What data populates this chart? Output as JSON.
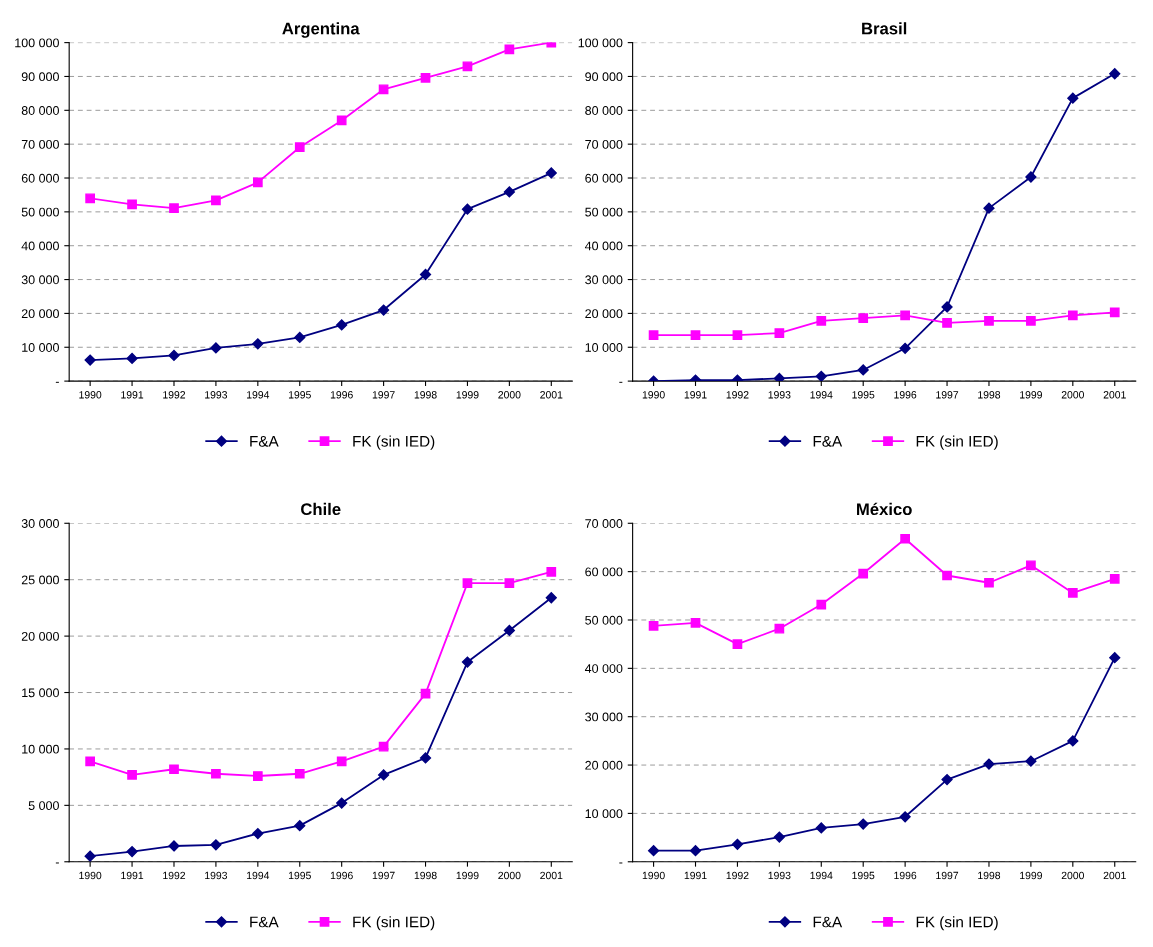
{
  "chart_data": [
    {
      "type": "line",
      "title": "Argentina",
      "categories": [
        "1990",
        "1991",
        "1992",
        "1993",
        "1994",
        "1995",
        "1996",
        "1997",
        "1998",
        "1999",
        "2000",
        "2001"
      ],
      "ylim": [
        0,
        100000
      ],
      "yticks": [
        {
          "value": 0,
          "label": "-"
        },
        {
          "value": 10000,
          "label": "10 000"
        },
        {
          "value": 20000,
          "label": "20 000"
        },
        {
          "value": 30000,
          "label": "30 000"
        },
        {
          "value": 40000,
          "label": "40 000"
        },
        {
          "value": 50000,
          "label": "50 000"
        },
        {
          "value": 60000,
          "label": "60 000"
        },
        {
          "value": 70000,
          "label": "70 000"
        },
        {
          "value": 80000,
          "label": "80 000"
        },
        {
          "value": 90000,
          "label": "90 000"
        },
        {
          "value": 100000,
          "label": "100 000"
        }
      ],
      "grid": "y",
      "legend": "bottom",
      "series": [
        {
          "name": "F&A",
          "color": "#000080",
          "marker": "diamond",
          "values": [
            6200,
            6700,
            7600,
            9800,
            11000,
            12900,
            16600,
            21000,
            31500,
            50800,
            55900,
            61500
          ]
        },
        {
          "name": "FK (sin IED)",
          "color": "#ff00ff",
          "marker": "square",
          "values": [
            54000,
            52200,
            51100,
            53400,
            58700,
            69100,
            77000,
            86200,
            89600,
            93000,
            98000,
            100000
          ]
        }
      ]
    },
    {
      "type": "line",
      "title": "Brasil",
      "categories": [
        "1990",
        "1991",
        "1992",
        "1993",
        "1994",
        "1995",
        "1996",
        "1997",
        "1998",
        "1999",
        "2000",
        "2001"
      ],
      "ylim": [
        0,
        100000
      ],
      "yticks": [
        {
          "value": 0,
          "label": "-"
        },
        {
          "value": 10000,
          "label": "10 000"
        },
        {
          "value": 20000,
          "label": "20 000"
        },
        {
          "value": 30000,
          "label": "30 000"
        },
        {
          "value": 40000,
          "label": "40 000"
        },
        {
          "value": 50000,
          "label": "50 000"
        },
        {
          "value": 60000,
          "label": "60 000"
        },
        {
          "value": 70000,
          "label": "70 000"
        },
        {
          "value": 80000,
          "label": "80 000"
        },
        {
          "value": 90000,
          "label": "90 000"
        },
        {
          "value": 100000,
          "label": "100 000"
        }
      ],
      "grid": "y",
      "legend": "bottom",
      "series": [
        {
          "name": "F&A",
          "color": "#000080",
          "marker": "diamond",
          "values": [
            0,
            300,
            300,
            800,
            1400,
            3300,
            9700,
            21900,
            51100,
            60300,
            83600,
            90800
          ]
        },
        {
          "name": "FK (sin IED)",
          "color": "#ff00ff",
          "marker": "square",
          "values": [
            13600,
            13600,
            13600,
            14200,
            17800,
            18600,
            19400,
            17200,
            17800,
            17800,
            19400,
            20300
          ]
        }
      ]
    },
    {
      "type": "line",
      "title": "Chile",
      "categories": [
        "1990",
        "1991",
        "1992",
        "1993",
        "1994",
        "1995",
        "1996",
        "1997",
        "1998",
        "1999",
        "2000",
        "2001"
      ],
      "ylim": [
        0,
        30000
      ],
      "yticks": [
        {
          "value": 0,
          "label": "-"
        },
        {
          "value": 5000,
          "label": "5 000"
        },
        {
          "value": 10000,
          "label": "10 000"
        },
        {
          "value": 15000,
          "label": "15 000"
        },
        {
          "value": 20000,
          "label": "20 000"
        },
        {
          "value": 25000,
          "label": "25 000"
        },
        {
          "value": 30000,
          "label": "30 000"
        }
      ],
      "grid": "y",
      "legend": "bottom",
      "series": [
        {
          "name": "F&A",
          "color": "#000080",
          "marker": "diamond",
          "values": [
            500,
            900,
            1400,
            1500,
            2500,
            3200,
            5200,
            7700,
            9200,
            17700,
            20500,
            23400
          ]
        },
        {
          "name": "FK (sin IED)",
          "color": "#ff00ff",
          "marker": "square",
          "values": [
            8900,
            7700,
            8200,
            7800,
            7600,
            7800,
            8900,
            10200,
            14900,
            24700,
            24700,
            25700
          ]
        }
      ]
    },
    {
      "type": "line",
      "title": "México",
      "categories": [
        "1990",
        "1991",
        "1992",
        "1993",
        "1994",
        "1995",
        "1996",
        "1997",
        "1998",
        "1999",
        "2000",
        "2001"
      ],
      "ylim": [
        0,
        70000
      ],
      "yticks": [
        {
          "value": 0,
          "label": "-"
        },
        {
          "value": 10000,
          "label": "10 000"
        },
        {
          "value": 20000,
          "label": "20 000"
        },
        {
          "value": 30000,
          "label": "30 000"
        },
        {
          "value": 40000,
          "label": "40 000"
        },
        {
          "value": 50000,
          "label": "50 000"
        },
        {
          "value": 60000,
          "label": "60 000"
        },
        {
          "value": 70000,
          "label": "70 000"
        }
      ],
      "grid": "y",
      "legend": "bottom",
      "series": [
        {
          "name": "F&A",
          "color": "#000080",
          "marker": "diamond",
          "values": [
            2300,
            2300,
            3600,
            5100,
            7000,
            7800,
            9300,
            17000,
            20200,
            20800,
            25000,
            42200
          ]
        },
        {
          "name": "FK (sin IED)",
          "color": "#ff00ff",
          "marker": "square",
          "values": [
            48800,
            49400,
            45000,
            48200,
            53200,
            59600,
            66800,
            59200,
            57700,
            61300,
            55600,
            58500
          ]
        }
      ]
    }
  ]
}
